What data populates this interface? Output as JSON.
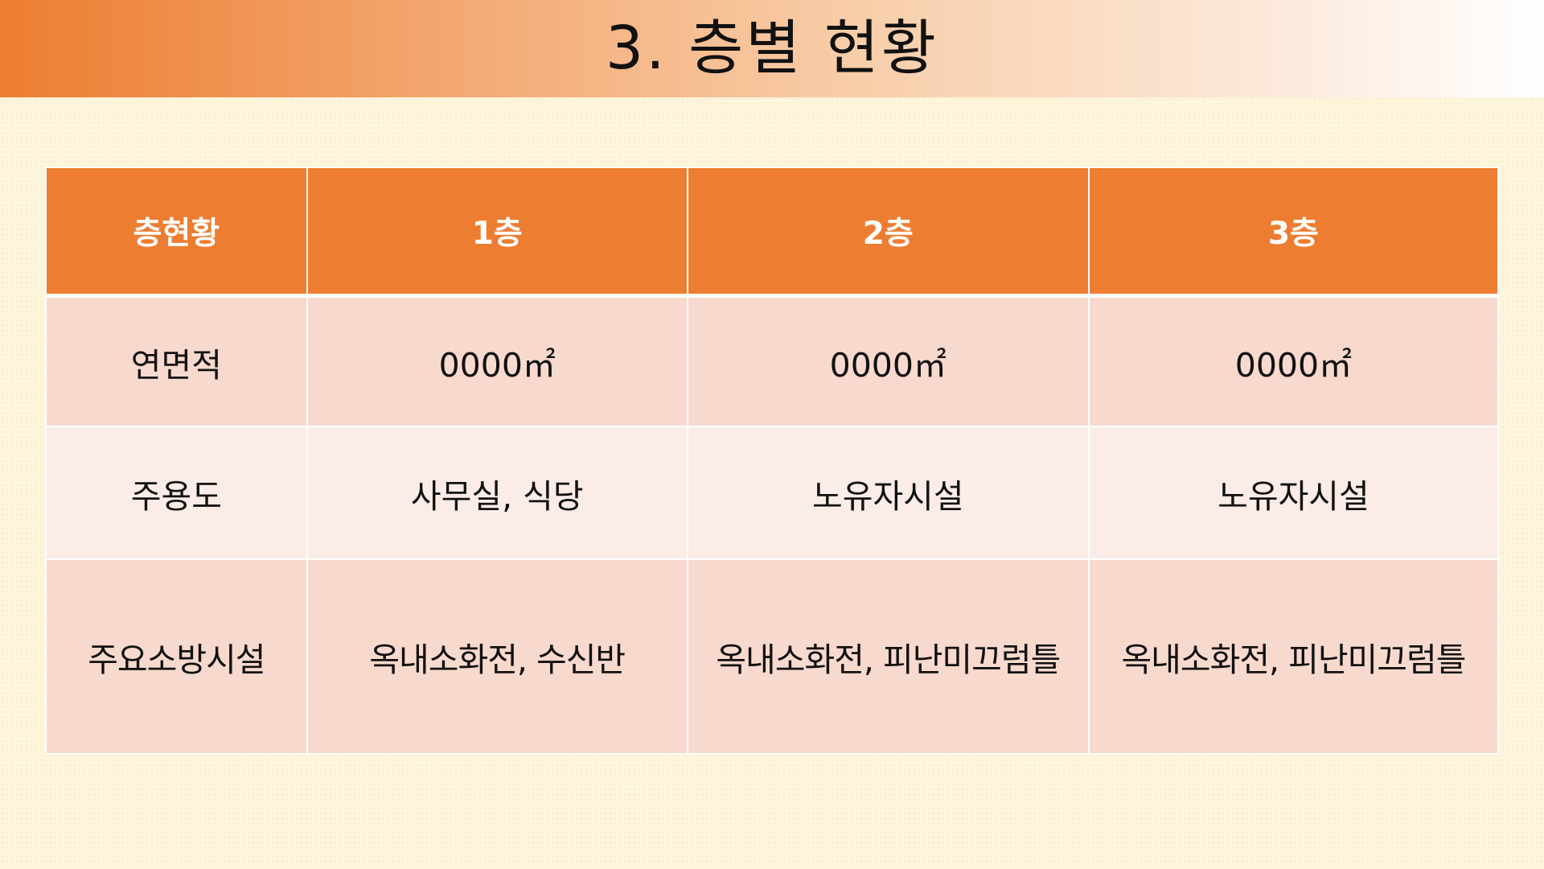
{
  "slide": {
    "title": "3. 층별 현황"
  },
  "table": {
    "headers": [
      "층현황",
      "1층",
      "2층",
      "3층"
    ],
    "rows": [
      {
        "label": "연면적",
        "cells": [
          "0000㎡",
          "0000㎡",
          "0000㎡"
        ]
      },
      {
        "label": "주용도",
        "cells": [
          "사무실, 식당",
          "노유자시설",
          "노유자시설"
        ]
      },
      {
        "label": "주요소방시설",
        "cells": [
          "옥내소화전, 수신반",
          "옥내소화전, 피난미끄럼틀",
          "옥내소화전, 피난미끄럼틀"
        ]
      }
    ]
  },
  "colors": {
    "header_orange": "#ED7D31",
    "row_dark": "#F8D9CE",
    "row_light": "#FBECE8",
    "background": "#FDF5DC"
  }
}
